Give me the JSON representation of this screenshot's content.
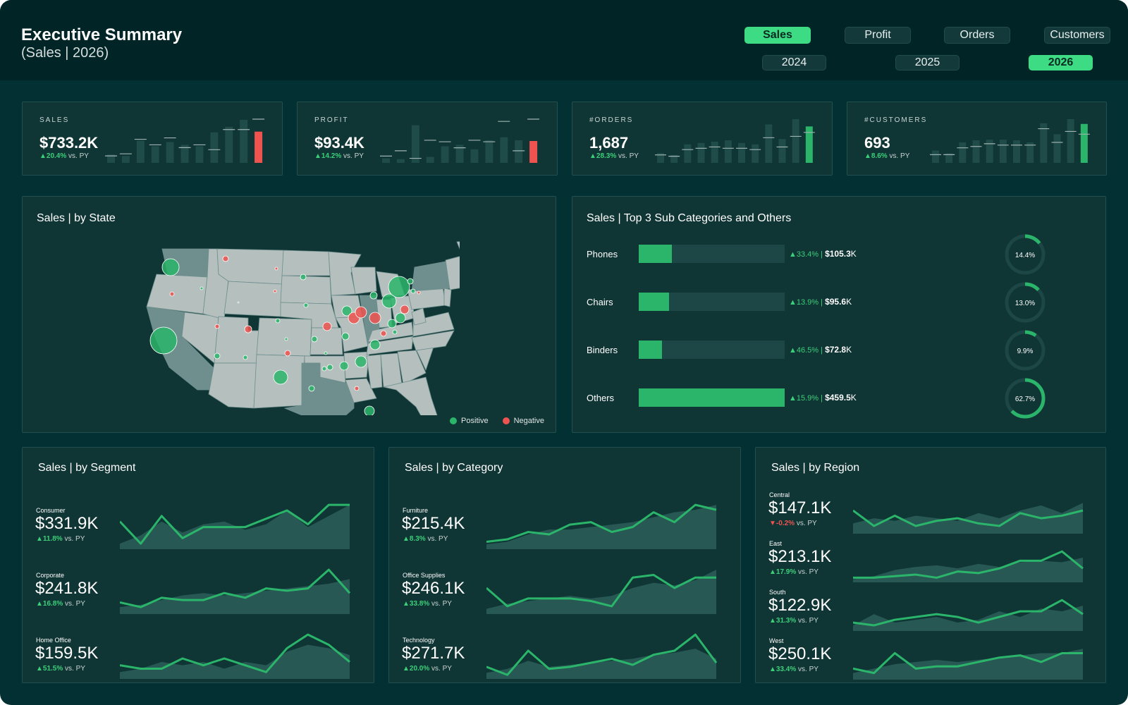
{
  "header": {
    "title": "Executive Summary",
    "subtitle": "(Sales | 2026)",
    "metric_tabs": [
      {
        "label": "Sales",
        "active": true
      },
      {
        "label": "Profit",
        "active": false
      },
      {
        "label": "Orders",
        "active": false
      },
      {
        "label": "Customers",
        "active": false
      }
    ],
    "year_tabs": [
      {
        "label": "2024",
        "active": false
      },
      {
        "label": "2025",
        "active": false
      },
      {
        "label": "2026",
        "active": true
      }
    ]
  },
  "kpis": [
    {
      "label": "SALES",
      "value": "$733.2K",
      "delta": "▲20.4%",
      "vs": "vs. PY",
      "bars": [
        12,
        10,
        32,
        24,
        30,
        26,
        24,
        44,
        52,
        62,
        45
      ],
      "prior": [
        10,
        13,
        34,
        26,
        36,
        22,
        26,
        19,
        48,
        48,
        63
      ],
      "highlight": "#ef5350"
    },
    {
      "label": "PROFIT",
      "value": "$93.4K",
      "delta": "▲14.2%",
      "vs": "vs. PY",
      "bars": [
        6,
        5,
        50,
        8,
        22,
        24,
        18,
        30,
        34,
        30,
        29
      ],
      "prior": [
        9,
        16,
        6,
        30,
        28,
        20,
        30,
        28,
        55,
        16,
        58
      ],
      "highlight": "#ef5350"
    },
    {
      "label": "#ORDERS",
      "value": "1,687",
      "delta": "▲28.3%",
      "vs": "vs. PY",
      "bars": [
        15,
        12,
        28,
        30,
        32,
        34,
        30,
        28,
        58,
        36,
        66,
        55
      ],
      "prior": [
        12,
        10,
        20,
        22,
        24,
        22,
        22,
        20,
        38,
        24,
        40,
        46
      ],
      "highlight": "#2bb56b"
    },
    {
      "label": "#CUSTOMERS",
      "value": "693",
      "delta": "▲8.6%",
      "vs": "vs. PY",
      "bars": [
        18,
        14,
        30,
        33,
        34,
        34,
        33,
        30,
        58,
        42,
        64,
        57
      ],
      "prior": [
        12,
        12,
        22,
        24,
        28,
        26,
        26,
        26,
        50,
        30,
        46,
        42
      ],
      "highlight": "#2bb56b"
    }
  ],
  "map_panel": {
    "title": "Sales | by State",
    "legend": [
      {
        "label": "Positive",
        "color": "#2bb56b"
      },
      {
        "label": "Negative",
        "color": "#ef5350"
      }
    ]
  },
  "subcat_panel": {
    "title": "Sales | Top 3 Sub Categories and Others",
    "items": [
      {
        "name": "Phones",
        "share": 0.229,
        "delta": "▲33.4%",
        "value": "$105.3",
        "unit": "K",
        "pct": "14.4%",
        "pct_value": 14.4
      },
      {
        "name": "Chairs",
        "share": 0.208,
        "delta": "▲13.9%",
        "value": "$95.6",
        "unit": "K",
        "pct": "13.0%",
        "pct_value": 13.0
      },
      {
        "name": "Binders",
        "share": 0.158,
        "delta": "▲46.5%",
        "value": "$72.8",
        "unit": "K",
        "pct": "9.9%",
        "pct_value": 9.9
      },
      {
        "name": "Others",
        "share": 1.0,
        "delta": "▲15.9%",
        "value": "$459.5",
        "unit": "K",
        "pct": "62.7%",
        "pct_value": 62.7
      }
    ]
  },
  "segment_panel": {
    "title": "Sales | by Segment",
    "items": [
      {
        "name": "Consumer",
        "value": "$331.9K",
        "delta": "▲11.8%",
        "vs": "vs. PY",
        "negative": false,
        "line": [
          10,
          2,
          12,
          4,
          8,
          8,
          8,
          11,
          14,
          9,
          16,
          16
        ],
        "area": [
          2,
          5,
          10,
          6,
          9,
          10,
          7,
          9,
          14,
          8,
          12,
          16
        ]
      },
      {
        "name": "Corporate",
        "value": "$241.8K",
        "delta": "▲16.8%",
        "vs": "vs. PY",
        "negative": false,
        "line": [
          5,
          3,
          7,
          6,
          6,
          9,
          7,
          11,
          10,
          11,
          19,
          9
        ],
        "area": [
          3,
          4,
          6,
          8,
          9,
          8,
          9,
          10,
          11,
          12,
          13,
          15
        ]
      },
      {
        "name": "Home Office",
        "value": "$159.5K",
        "delta": "▲51.5%",
        "vs": "vs. PY",
        "negative": false,
        "line": [
          4,
          3,
          3,
          6,
          4,
          6,
          4,
          2,
          9,
          13,
          10,
          5
        ],
        "area": [
          2,
          3,
          5,
          4,
          5,
          3,
          5,
          4,
          8,
          10,
          9,
          7
        ]
      }
    ]
  },
  "category_panel": {
    "title": "Sales | by Category",
    "items": [
      {
        "name": "Furniture",
        "value": "$215.4K",
        "delta": "▲8.3%",
        "vs": "vs. PY",
        "negative": false,
        "line": [
          3,
          4,
          7,
          6,
          10,
          11,
          7,
          9,
          15,
          11,
          18,
          16
        ],
        "area": [
          2,
          3,
          6,
          8,
          8,
          9,
          10,
          11,
          13,
          15,
          16,
          18
        ]
      },
      {
        "name": "Office Supplies",
        "value": "$246.1K",
        "delta": "▲33.8%",
        "vs": "vs. PY",
        "negative": false,
        "line": [
          10,
          3,
          6,
          6,
          6,
          5,
          3,
          14,
          15,
          10,
          14,
          14
        ],
        "area": [
          2,
          4,
          5,
          6,
          7,
          6,
          7,
          10,
          12,
          11,
          13,
          17
        ]
      },
      {
        "name": "Technology",
        "value": "$271.7K",
        "delta": "▲20.0%",
        "vs": "vs. PY",
        "negative": false,
        "line": [
          6,
          2,
          14,
          5,
          6,
          8,
          10,
          7,
          12,
          14,
          22,
          8
        ],
        "area": [
          3,
          5,
          9,
          6,
          7,
          8,
          9,
          10,
          12,
          13,
          15,
          10
        ]
      }
    ]
  },
  "region_panel": {
    "title": "Sales | by Region",
    "items": [
      {
        "name": "Central",
        "value": "$147.1K",
        "delta": "▼-0.2%",
        "vs": "vs. PY",
        "negative": true,
        "line": [
          9,
          3,
          7,
          3,
          5,
          6,
          4,
          3,
          8,
          6,
          7,
          9
        ],
        "area": [
          4,
          6,
          5,
          7,
          6,
          5,
          8,
          6,
          9,
          11,
          8,
          12
        ]
      },
      {
        "name": "East",
        "value": "$213.1K",
        "delta": "▲17.9%",
        "vs": "vs. PY",
        "negative": false,
        "line": [
          3,
          3,
          4,
          5,
          3,
          7,
          6,
          9,
          14,
          14,
          20,
          9
        ],
        "area": [
          2,
          4,
          8,
          10,
          11,
          9,
          12,
          10,
          13,
          14,
          13,
          16
        ]
      },
      {
        "name": "South",
        "value": "$122.9K",
        "delta": "▲31.3%",
        "vs": "vs. PY",
        "negative": false,
        "line": [
          3,
          2,
          4,
          5,
          6,
          5,
          3,
          5,
          7,
          7,
          11,
          6
        ],
        "area": [
          2,
          6,
          3,
          4,
          5,
          3,
          4,
          7,
          5,
          8,
          7,
          9
        ]
      },
      {
        "name": "West",
        "value": "$250.1K",
        "delta": "▲33.4%",
        "vs": "vs. PY",
        "negative": false,
        "line": [
          5,
          3,
          12,
          5,
          6,
          6,
          8,
          10,
          11,
          8,
          12,
          12
        ],
        "area": [
          3,
          5,
          7,
          8,
          9,
          8,
          9,
          10,
          11,
          12,
          12,
          14
        ]
      }
    ]
  },
  "colors": {
    "accent": "#3ddc84",
    "positive": "#2bb56b",
    "negative": "#ef5350",
    "background": "#033133",
    "card": "#0f3534"
  }
}
